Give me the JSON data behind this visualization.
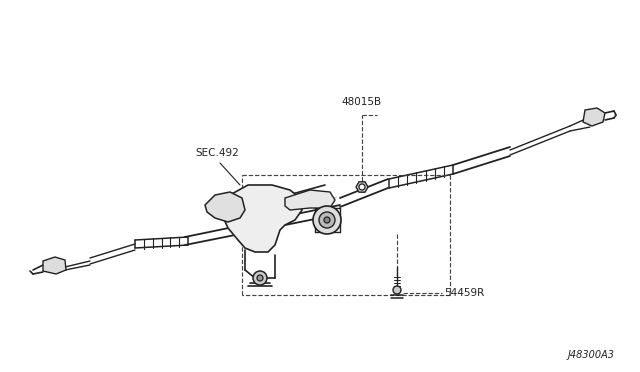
{
  "background_color": "#ffffff",
  "line_color": "#222222",
  "dashed_color": "#444444",
  "diagram_id": "J48300A3",
  "fig_width": 6.4,
  "fig_height": 3.72,
  "dpi": 100,
  "label_48015B": "48015B",
  "label_SEC492": "SEC.492",
  "label_54459R": "54459R"
}
